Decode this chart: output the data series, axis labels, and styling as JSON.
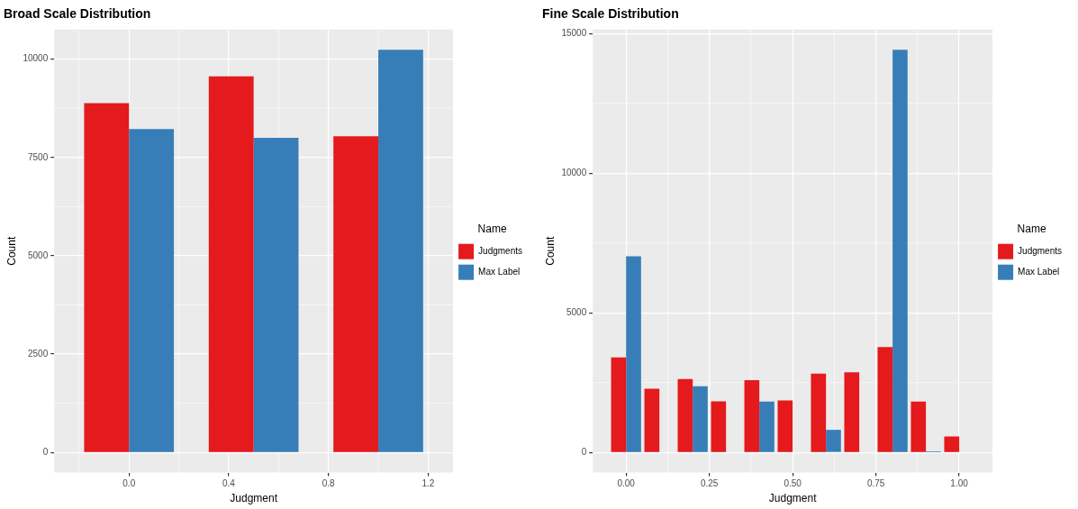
{
  "chart_data": [
    {
      "type": "bar",
      "title": "Broad Scale Distribution",
      "xlabel": "Judgment",
      "ylabel": "Count",
      "legend_title": "Name",
      "legend": "right",
      "grid": true,
      "x": [
        0,
        0.5,
        1
      ],
      "series": [
        {
          "name": "Judgments",
          "color": "#e41a1c",
          "values": [
            8880,
            9560,
            8040
          ]
        },
        {
          "name": "Max Label",
          "color": "#377eb8",
          "values": [
            8220,
            8000,
            10240
          ]
        }
      ],
      "xlim": [
        -0.3,
        1.3
      ],
      "xticks": [
        {
          "value": 0,
          "label": "0.0"
        },
        0.4,
        0.8,
        1.2
      ],
      "ylim": [
        -512,
        10752
      ],
      "yticks": [
        0,
        2500,
        5000,
        7500,
        10000
      ]
    },
    {
      "type": "bar",
      "title": "Fine Scale Distribution",
      "xlabel": "Judgment",
      "ylabel": "Count",
      "legend_title": "Name",
      "legend": "right",
      "grid": true,
      "x": [
        0,
        0.1,
        0.2,
        0.3,
        0.4,
        0.5,
        0.6,
        0.7,
        0.8,
        0.9,
        1
      ],
      "series": [
        {
          "name": "Judgments",
          "color": "#e41a1c",
          "values": [
            3400,
            2280,
            2630,
            1830,
            2590,
            1860,
            2820,
            2870,
            3770,
            1820,
            570
          ]
        },
        {
          "name": "Max Label",
          "color": "#377eb8",
          "values": [
            7020,
            null,
            2370,
            null,
            1820,
            null,
            810,
            null,
            14420,
            40,
            null
          ]
        }
      ],
      "xlim": [
        -0.1,
        1.1
      ],
      "xticks": [
        {
          "value": 0,
          "label": "0.00"
        },
        0.25,
        {
          "value": 0.5,
          "label": "0.50"
        },
        0.75,
        {
          "value": 1,
          "label": "1.00"
        }
      ],
      "ylim": [
        -721,
        15141
      ],
      "yticks": [
        0,
        5000,
        10000,
        15000
      ]
    }
  ]
}
